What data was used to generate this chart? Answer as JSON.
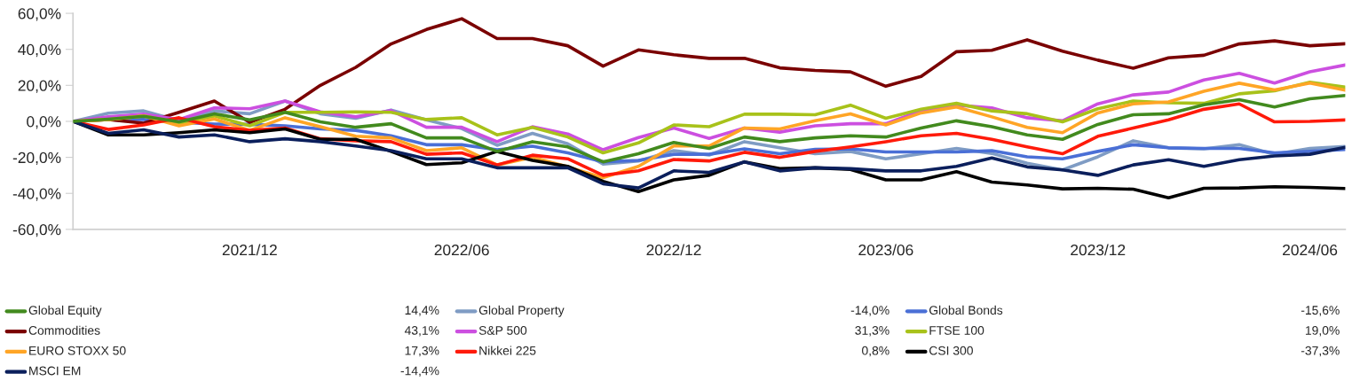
{
  "chart_data": {
    "type": "line",
    "categories": [
      null,
      null,
      null,
      null,
      null,
      "2021/12",
      null,
      null,
      null,
      null,
      null,
      "2022/06",
      null,
      null,
      null,
      null,
      null,
      "2022/12",
      null,
      null,
      null,
      null,
      null,
      "2023/06",
      null,
      null,
      null,
      null,
      null,
      "2023/12",
      null,
      null,
      null,
      null,
      null,
      "2024/06",
      null
    ],
    "ylim": [
      -60,
      60
    ],
    "yticks": [
      {
        "value": -60,
        "label": "-60,0%"
      },
      {
        "value": -40,
        "label": "-40,0%"
      },
      {
        "value": -20,
        "label": "-20,0%"
      },
      {
        "value": 0,
        "label": "0,0%"
      },
      {
        "value": 20,
        "label": "20,0%"
      },
      {
        "value": 40,
        "label": "40,0%"
      },
      {
        "value": 60,
        "label": "60,0%"
      }
    ],
    "grid": false,
    "legend": "bottom",
    "marker": "none",
    "line_style": "solid",
    "annotations": [
      "14,4%",
      "-14,0%",
      "-15,6%",
      "43,1%",
      "31,3%",
      "19,0%",
      "17,3%",
      "0,8%",
      "-37,3%",
      "-14,4%"
    ],
    "series": [
      {
        "name": "Global Equity",
        "color": "#428a1e",
        "values": [
          0,
          1.2,
          2.8,
          -0.3,
          4.2,
          0.8,
          5,
          -0.3,
          -3.3,
          -1.3,
          -9.2,
          -9.2,
          -16.7,
          -11.3,
          -14.2,
          -22.5,
          -18,
          -11.7,
          -15,
          -8.7,
          -11.3,
          -9.2,
          -8,
          -8.7,
          -3.7,
          0.3,
          -3,
          -7.5,
          -10,
          -1.7,
          3.7,
          4.2,
          9.2,
          12,
          8,
          12.5,
          14.4
        ]
      },
      {
        "name": "Global Property",
        "color": "#7f9cc4",
        "values": [
          0,
          4.5,
          5.8,
          0.3,
          5.8,
          4.2,
          11.3,
          4.2,
          1.7,
          6.3,
          0.8,
          -4,
          -13.3,
          -6.7,
          -12.5,
          -23.7,
          -22,
          -16.3,
          -18.7,
          -11.3,
          -14.7,
          -18,
          -16.7,
          -20.8,
          -18,
          -15,
          -17.8,
          -23.3,
          -27,
          -19.7,
          -10.8,
          -14.7,
          -15.3,
          -13,
          -18.3,
          -15,
          -14.0
        ]
      },
      {
        "name": "Global Bonds",
        "color": "#4a6fd6",
        "values": [
          0,
          1,
          1,
          -0.5,
          -1.5,
          -1.7,
          -2.5,
          -4.2,
          -5,
          -8,
          -13,
          -13,
          -15.8,
          -13.8,
          -17.5,
          -22.5,
          -21.7,
          -18.3,
          -18.3,
          -15.3,
          -18,
          -15.5,
          -15.3,
          -17,
          -17,
          -17,
          -16.3,
          -19.7,
          -20.8,
          -16.7,
          -13,
          -14.7,
          -15,
          -15,
          -17.5,
          -16.7,
          -15.6
        ]
      },
      {
        "name": "Commodities",
        "color": "#7a0000",
        "values": [
          0,
          1,
          -1,
          5,
          11.3,
          -0.5,
          6.7,
          20,
          30,
          43,
          51,
          57,
          46,
          46,
          42,
          30.7,
          39.7,
          37,
          35,
          35,
          29.7,
          28.3,
          27.5,
          19.5,
          25,
          38.7,
          39.5,
          45.3,
          39,
          34,
          29.5,
          35.3,
          36.7,
          43,
          44.7,
          42,
          43.1
        ]
      },
      {
        "name": "S&P 500",
        "color": "#cc4fe0",
        "values": [
          0,
          2.5,
          4,
          1,
          7.5,
          7,
          11.3,
          5.3,
          2.5,
          6,
          -3.3,
          -3.3,
          -11.3,
          -3,
          -7,
          -15.8,
          -9,
          -3.7,
          -9.5,
          -3.7,
          -6,
          -2.5,
          -1.3,
          -1.3,
          6,
          9,
          7.5,
          2,
          0.3,
          9.7,
          14.7,
          16.3,
          23,
          26.7,
          21.3,
          27.5,
          31.3
        ]
      },
      {
        "name": "FTSE 100",
        "color": "#a8c21a",
        "values": [
          0,
          1,
          3,
          -1,
          3,
          -2.5,
          5,
          5,
          5.3,
          5,
          1,
          2,
          -7.5,
          -3.3,
          -8.7,
          -17.5,
          -12,
          -2,
          -3,
          4,
          4,
          3.7,
          9,
          1.7,
          6.7,
          10,
          5.8,
          4.2,
          -0.3,
          7,
          11.3,
          10.3,
          10,
          15.3,
          17,
          21.7,
          19.0
        ]
      },
      {
        "name": "EURO STOXX 50",
        "color": "#ffa526",
        "values": [
          0,
          1,
          3,
          -2.5,
          1.3,
          -5,
          2,
          -3,
          -8.3,
          -9.2,
          -16.3,
          -14.7,
          -24.2,
          -20,
          -25.3,
          -31.3,
          -25,
          -13.7,
          -13.7,
          -3.7,
          -4.2,
          0.3,
          4.2,
          -2,
          4.7,
          8,
          2.5,
          -3.3,
          -6.3,
          4.7,
          9.7,
          10.8,
          16.7,
          21.2,
          17.5,
          21.3,
          17.3
        ]
      },
      {
        "name": "Nikkei 225",
        "color": "#ff1a0a",
        "values": [
          0,
          -4.5,
          -2,
          2,
          -3,
          -5,
          -3.7,
          -9.7,
          -10.8,
          -11.3,
          -18.3,
          -17.5,
          -24.2,
          -18.8,
          -20.8,
          -30,
          -27.5,
          -21.2,
          -22,
          -17.2,
          -20,
          -16.7,
          -14.2,
          -11.3,
          -8,
          -6.7,
          -10,
          -14.2,
          -18,
          -8.3,
          -3.7,
          0.8,
          6.7,
          9.7,
          -0.3,
          0,
          0.8
        ]
      },
      {
        "name": "CSI 300",
        "color": "#000000",
        "values": [
          0,
          -7.5,
          -7.5,
          -6.3,
          -4.7,
          -6.3,
          -4.2,
          -10,
          -10,
          -16.7,
          -24,
          -23,
          -16.7,
          -21.7,
          -25,
          -33.3,
          -39,
          -32.5,
          -30,
          -22.5,
          -26.3,
          -25.8,
          -26.7,
          -32.5,
          -32.5,
          -28,
          -33.7,
          -35.3,
          -37.5,
          -37.2,
          -37.7,
          -42.5,
          -37.2,
          -37,
          -36.3,
          -36.7,
          -37.3
        ]
      },
      {
        "name": "MSCI EM",
        "color": "#0b1f5c",
        "values": [
          0,
          -6.7,
          -4.7,
          -8.7,
          -7.5,
          -11.3,
          -9.7,
          -11.3,
          -13.7,
          -16.3,
          -20.8,
          -20.8,
          -25.8,
          -25.8,
          -25.8,
          -34.7,
          -37,
          -27.5,
          -28.3,
          -22.5,
          -27.5,
          -25.8,
          -26.3,
          -27.5,
          -27.5,
          -25,
          -20.3,
          -25.3,
          -27,
          -30,
          -24.2,
          -21.3,
          -25,
          -21.3,
          -19.2,
          -18.3,
          -14.4
        ]
      }
    ]
  }
}
